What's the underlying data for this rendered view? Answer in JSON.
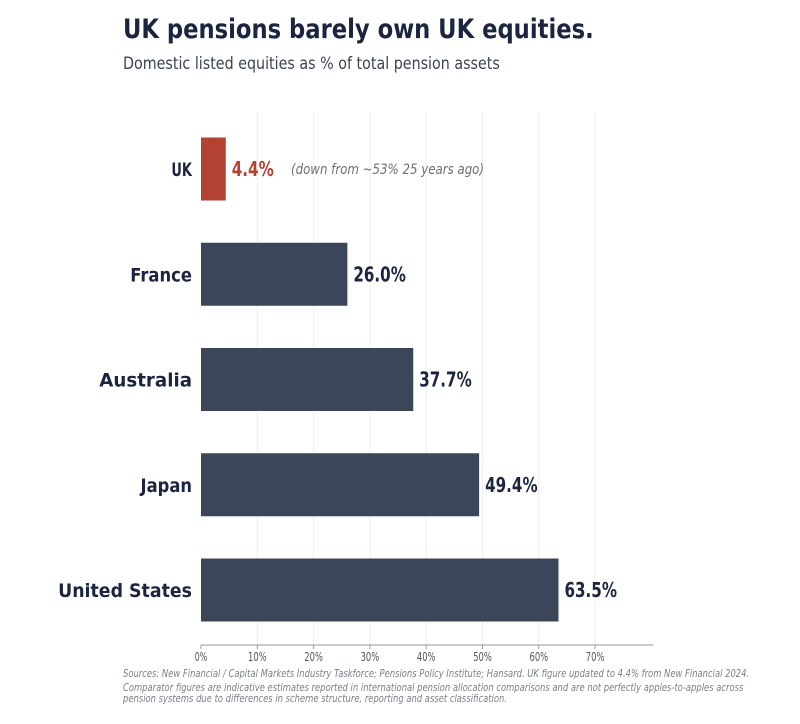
{
  "title": "UK pensions barely own UK equities.",
  "subtitle": "Domestic listed equities as % of total pension assets",
  "chart_data": {
    "type": "bar",
    "orientation": "horizontal",
    "categories": [
      "UK",
      "France",
      "Australia",
      "Japan",
      "United States"
    ],
    "values": [
      4.4,
      26.0,
      37.7,
      49.4,
      63.5
    ],
    "value_labels": [
      "4.4%",
      "26.0%",
      "37.7%",
      "49.4%",
      "63.5%"
    ],
    "xlim": [
      0,
      80
    ],
    "xticks": [
      0,
      10,
      20,
      30,
      40,
      50,
      60,
      70
    ],
    "xtick_labels": [
      "0%",
      "10%",
      "20%",
      "30%",
      "40%",
      "50%",
      "60%",
      "70%"
    ],
    "xlabel": "",
    "ylabel": "",
    "grid": "vertical",
    "highlight_category": "UK",
    "annotation": "(down from ~53% 25 years ago)",
    "colors": {
      "highlight": "#b34232",
      "bars": "#3b4658",
      "labels": "#1b2540",
      "grid": "#eeeeee",
      "annotation": "#6e6e6e"
    }
  },
  "sources": "Sources: New Financial / Capital Markets Industry Taskforce; Pensions Policy Institute; Hansard. UK figure updated to 4.4% from New Financial 2024.",
  "note": "Comparator figures are indicative estimates reported in international pension allocation comparisons and are not perfectly apples-to-apples across pension systems due to differences in scheme structure, reporting and asset classification."
}
